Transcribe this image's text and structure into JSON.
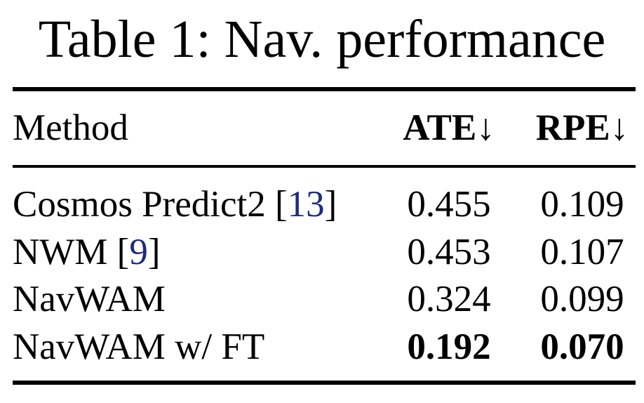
{
  "table": {
    "title": "Table 1: Nav. performance",
    "header": [
      "Method",
      "ATE↓",
      "RPE↓"
    ],
    "rows": [
      {
        "method": [
          "Cosmos Predict2 [",
          "13",
          "]"
        ],
        "ate": "0.455",
        "rpe": "0.109"
      },
      {
        "method": [
          "NWM [",
          "9",
          "]"
        ],
        "ate": "0.453",
        "rpe": "0.107"
      },
      {
        "method": [
          "NavWAM"
        ],
        "ate": "0.324",
        "rpe": "0.099"
      },
      {
        "method": [
          "NavWAM w/ FT"
        ],
        "ate": "0.192",
        "rpe": "0.070"
      }
    ]
  }
}
